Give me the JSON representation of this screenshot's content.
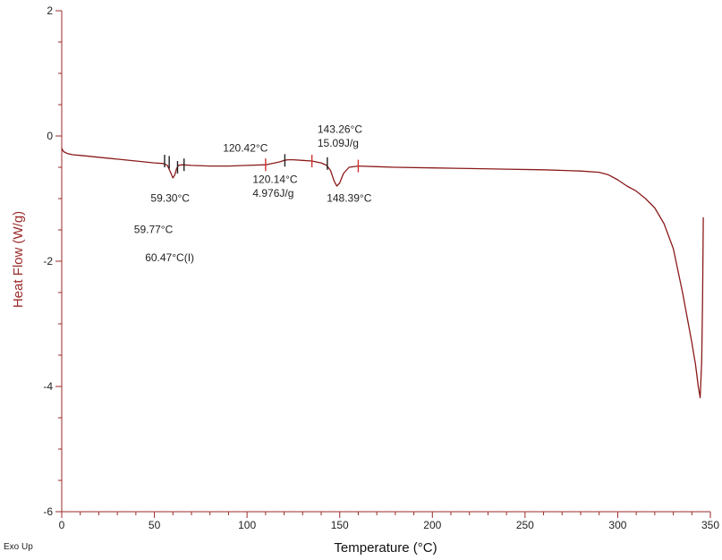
{
  "chart_data": {
    "type": "line",
    "xlabel": "Temperature (°C)",
    "ylabel": "Heat Flow (W/g)",
    "corner_label": "Exo Up",
    "xlim": [
      0,
      350
    ],
    "ylim": [
      -6,
      2
    ],
    "x_ticks": [
      0,
      50,
      100,
      150,
      200,
      250,
      300,
      350
    ],
    "x_tick_labels": [
      "0",
      "50",
      "100",
      "150",
      "200",
      "250",
      "300",
      "350"
    ],
    "y_ticks": [
      2,
      0,
      -2,
      -4,
      -6
    ],
    "y_tick_labels": [
      "2",
      "0",
      "-2",
      "-4",
      "-6"
    ],
    "x_minor_step": 10,
    "y_minor_step": 0.5,
    "grid": false,
    "colors": {
      "axis": "#9b2a2a",
      "curve": "#8b1a1a",
      "marker_black": "#222222",
      "marker_red": "#d03030"
    },
    "series": [
      {
        "x": [
          0,
          1,
          3,
          6,
          10,
          20,
          30,
          40,
          50,
          55,
          57,
          59,
          60,
          61,
          62,
          63,
          65,
          70,
          80,
          90,
          100,
          110,
          115,
          118,
          120,
          122,
          125,
          130,
          135,
          140,
          143,
          145,
          147,
          148.4,
          150,
          152,
          155,
          160,
          170,
          180,
          200,
          220,
          240,
          260,
          280,
          290,
          295,
          300,
          305,
          310,
          315,
          320,
          325,
          330,
          335,
          340,
          342,
          343.5,
          344.5,
          345.3,
          345.8,
          346.2
        ],
        "y": [
          -0.2,
          -0.25,
          -0.28,
          -0.3,
          -0.31,
          -0.34,
          -0.37,
          -0.4,
          -0.43,
          -0.44,
          -0.47,
          -0.6,
          -0.67,
          -0.62,
          -0.52,
          -0.47,
          -0.46,
          -0.47,
          -0.48,
          -0.48,
          -0.47,
          -0.46,
          -0.43,
          -0.41,
          -0.39,
          -0.38,
          -0.38,
          -0.39,
          -0.4,
          -0.43,
          -0.47,
          -0.55,
          -0.72,
          -0.8,
          -0.75,
          -0.6,
          -0.5,
          -0.48,
          -0.49,
          -0.5,
          -0.51,
          -0.52,
          -0.53,
          -0.54,
          -0.56,
          -0.58,
          -0.62,
          -0.7,
          -0.8,
          -0.88,
          -1.0,
          -1.15,
          -1.4,
          -1.8,
          -2.5,
          -3.3,
          -3.65,
          -4.0,
          -4.18,
          -3.6,
          -2.6,
          -1.3
        ]
      }
    ],
    "markers": [
      {
        "x": 55.5,
        "y": -0.4,
        "color": "black"
      },
      {
        "x": 58,
        "y": -0.42,
        "color": "black"
      },
      {
        "x": 62.5,
        "y": -0.5,
        "color": "black"
      },
      {
        "x": 66,
        "y": -0.46,
        "color": "black"
      },
      {
        "x": 110,
        "y": -0.46,
        "color": "red"
      },
      {
        "x": 120.4,
        "y": -0.39,
        "color": "black"
      },
      {
        "x": 135,
        "y": -0.4,
        "color": "red"
      },
      {
        "x": 143.3,
        "y": -0.44,
        "color": "black"
      },
      {
        "x": 160,
        "y": -0.48,
        "color": "red"
      }
    ],
    "annotations": [
      {
        "text": "59.30°C",
        "x": 48,
        "y": -1.05
      },
      {
        "text": "59.77°C",
        "x": 39,
        "y": -1.55
      },
      {
        "text": "60.47°C(I)",
        "x": 45,
        "y": -2.0
      },
      {
        "text": "120.42°C",
        "x": 87,
        "y": -0.25
      },
      {
        "text": "120.14°C",
        "x": 103,
        "y": -0.75
      },
      {
        "text": "4.976J/g",
        "x": 103,
        "y": -0.97
      },
      {
        "text": "143.26°C",
        "x": 138,
        "y": 0.05
      },
      {
        "text": "15.09J/g",
        "x": 138,
        "y": -0.17
      },
      {
        "text": "148.39°C",
        "x": 143,
        "y": -1.05
      }
    ]
  }
}
